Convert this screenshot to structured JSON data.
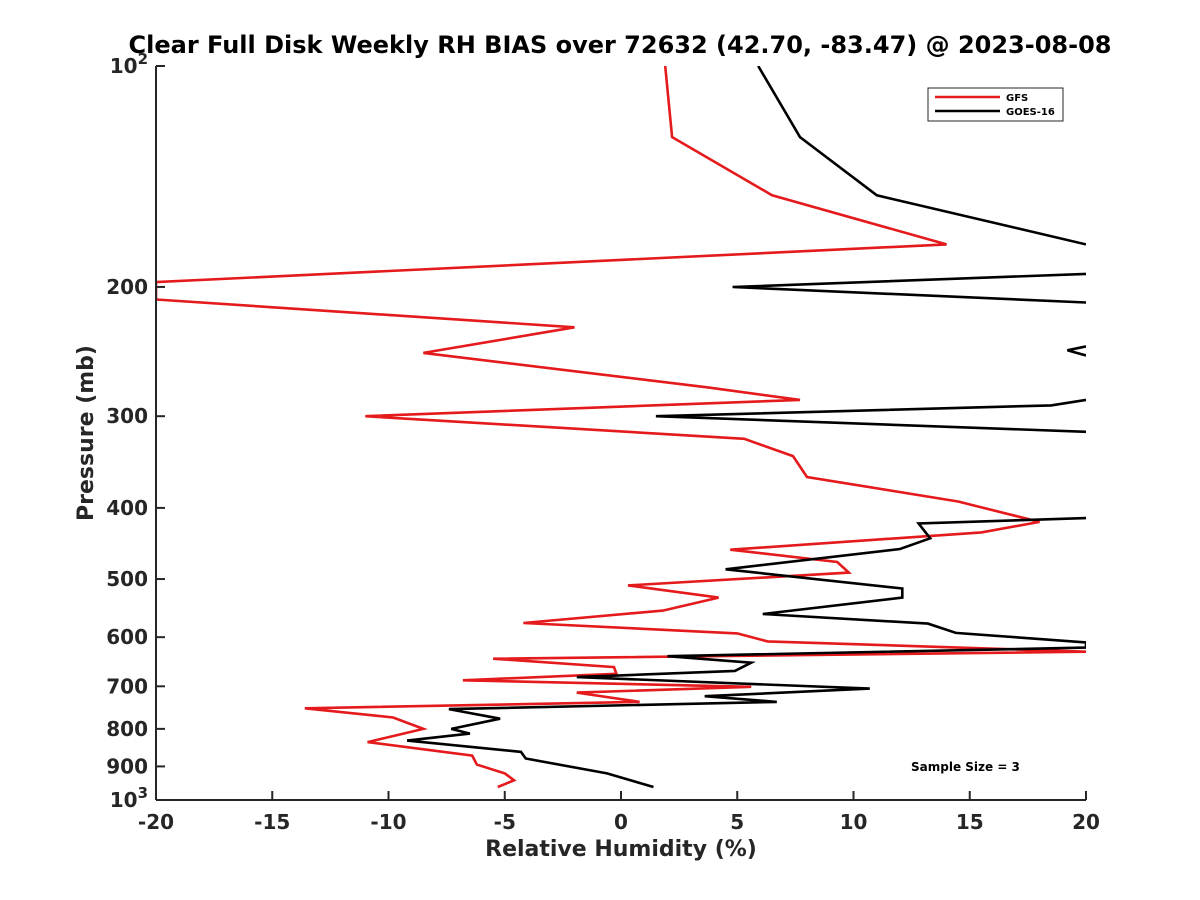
{
  "chart_data": {
    "type": "line",
    "title": "Clear Full Disk Weekly RH BIAS over 72632 (42.70, -83.47) @ 2023-08-08",
    "xlabel": "Relative Humidity (%)",
    "ylabel": "Pressure (mb)",
    "xlim": [
      -20,
      20
    ],
    "ylim": [
      100,
      1000
    ],
    "yscale": "log",
    "y_reversed": true,
    "x_ticks": [
      "-20",
      "-15",
      "-10",
      "-5",
      "0",
      "5",
      "10",
      "15",
      "20"
    ],
    "y_ticks": [
      {
        "value": 100,
        "base": "10",
        "exp": "2"
      },
      {
        "value": 200,
        "label": "200"
      },
      {
        "value": 300,
        "label": "300"
      },
      {
        "value": 400,
        "label": "400"
      },
      {
        "value": 500,
        "label": "500"
      },
      {
        "value": 600,
        "label": "600"
      },
      {
        "value": 700,
        "label": "700"
      },
      {
        "value": 800,
        "label": "800"
      },
      {
        "value": 900,
        "label": "900"
      },
      {
        "value": 1000,
        "base": "10",
        "exp": "3"
      }
    ],
    "legend_position": "top-right",
    "annotation": "Sample Size = 3",
    "series": [
      {
        "name": "GFS",
        "color": "#e41a1c",
        "points": [
          [
            1.9,
            100
          ],
          [
            2.2,
            125
          ],
          [
            6.5,
            150
          ],
          [
            14.0,
            175
          ],
          [
            -20.0,
            197
          ],
          [
            -20.0,
            208
          ],
          [
            -2.0,
            227
          ],
          [
            -8.5,
            246
          ],
          [
            3.7,
            274
          ],
          [
            7.7,
            285
          ],
          [
            -11.0,
            300
          ],
          [
            5.3,
            322
          ],
          [
            7.4,
            340
          ],
          [
            8.0,
            363
          ],
          [
            14.5,
            392
          ],
          [
            18.0,
            418
          ],
          [
            15.5,
            432
          ],
          [
            4.7,
            456
          ],
          [
            9.3,
            474
          ],
          [
            9.8,
            490
          ],
          [
            0.3,
            510
          ],
          [
            4.2,
            530
          ],
          [
            1.8,
            552
          ],
          [
            -4.2,
            574
          ],
          [
            5.0,
            593
          ],
          [
            6.3,
            608
          ],
          [
            20.0,
            628
          ],
          [
            -5.5,
            642
          ],
          [
            -0.3,
            659
          ],
          [
            -0.2,
            673
          ],
          [
            -6.8,
            687
          ],
          [
            5.6,
            701
          ],
          [
            -1.9,
            714
          ],
          [
            0.8,
            735
          ],
          [
            -13.6,
            750
          ],
          [
            -9.8,
            772
          ],
          [
            -8.5,
            800
          ],
          [
            -10.9,
            834
          ],
          [
            -6.4,
            870
          ],
          [
            -6.2,
            895
          ],
          [
            -5.0,
            920
          ],
          [
            -4.6,
            940
          ],
          [
            -5.3,
            960
          ]
        ]
      },
      {
        "name": "GOES-16",
        "color": "#000000",
        "points": [
          [
            5.9,
            100
          ],
          [
            7.7,
            125
          ],
          [
            11.0,
            150
          ],
          [
            20.0,
            175
          ],
          [
            null,
            186
          ],
          [
            20.0,
            192
          ],
          [
            4.8,
            200
          ],
          [
            20.0,
            210
          ],
          [
            null,
            232
          ],
          [
            20.0,
            241
          ],
          [
            19.2,
            244
          ],
          [
            20.0,
            248
          ],
          [
            null,
            270
          ],
          [
            20.0,
            285
          ],
          [
            18.5,
            290
          ],
          [
            1.5,
            300
          ],
          [
            20.0,
            315
          ],
          [
            null,
            408
          ],
          [
            20.0,
            413
          ],
          [
            12.8,
            420
          ],
          [
            13.3,
            440
          ],
          [
            12.0,
            455
          ],
          [
            4.5,
            485
          ],
          [
            12.1,
            515
          ],
          [
            12.1,
            530
          ],
          [
            6.1,
            558
          ],
          [
            13.2,
            575
          ],
          [
            14.4,
            592
          ],
          [
            20.0,
            610
          ],
          [
            20.0,
            620
          ],
          [
            2.0,
            637
          ],
          [
            5.6,
            650
          ],
          [
            4.9,
            667
          ],
          [
            -1.9,
            680
          ],
          [
            10.7,
            705
          ],
          [
            3.6,
            722
          ],
          [
            6.7,
            735
          ],
          [
            -7.4,
            752
          ],
          [
            -5.2,
            775
          ],
          [
            -7.3,
            800
          ],
          [
            -6.5,
            812
          ],
          [
            -9.2,
            830
          ],
          [
            -4.3,
            860
          ],
          [
            -4.1,
            878
          ],
          [
            -0.6,
            920
          ],
          [
            1.4,
            960
          ]
        ]
      }
    ]
  }
}
